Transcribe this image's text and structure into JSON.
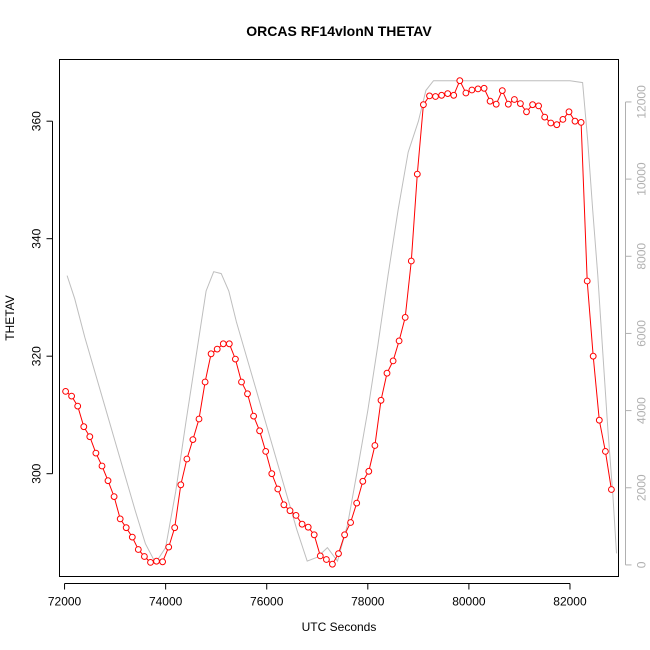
{
  "chart_data": {
    "type": "line",
    "title": "ORCAS RF14vlonN THETAV",
    "xlabel": "UTC Seconds",
    "ylabel": "THETAV",
    "ylabel_right": "",
    "xlim": [
      71900,
      82960
    ],
    "ylim": [
      282.5,
      370.5
    ],
    "ylim_right": [
      -300,
      13100
    ],
    "x_ticks": [
      72000,
      74000,
      76000,
      78000,
      80000,
      82000
    ],
    "y_ticks": [
      300,
      320,
      340,
      360
    ],
    "y_ticks_right": [
      0,
      2000,
      4000,
      6000,
      8000,
      10000,
      12000
    ],
    "grid": false,
    "colors": {
      "primary": "#ff0000",
      "secondary": "#bebebe",
      "axis": "#000000",
      "right_axis": "#b0b0b0"
    },
    "series": [
      {
        "axis": "left",
        "marker": "circle",
        "x": [
          72020,
          72140,
          72260,
          72380,
          72500,
          72620,
          72740,
          72860,
          72980,
          73100,
          73220,
          73340,
          73460,
          73580,
          73700,
          73820,
          73940,
          74060,
          74180,
          74300,
          74420,
          74540,
          74660,
          74780,
          74900,
          75020,
          75140,
          75260,
          75380,
          75500,
          75620,
          75740,
          75860,
          75980,
          76100,
          76220,
          76340,
          76460,
          76580,
          76700,
          76820,
          76940,
          77060,
          77180,
          77300,
          77420,
          77540,
          77660,
          77780,
          77900,
          78020,
          78140,
          78260,
          78380,
          78500,
          78620,
          78740,
          78860,
          78980,
          79100,
          79220,
          79340,
          79460,
          79580,
          79700,
          79820,
          79940,
          80060,
          80180,
          80300,
          80420,
          80540,
          80660,
          80780,
          80900,
          81020,
          81140,
          81260,
          81380,
          81500,
          81620,
          81740,
          81860,
          81980,
          82100,
          82220,
          82340,
          82460,
          82580,
          82700,
          82820
        ],
        "y": [
          314.0,
          313.2,
          311.5,
          308.0,
          306.3,
          303.5,
          301.3,
          298.8,
          296.1,
          292.3,
          290.8,
          289.2,
          287.1,
          285.9,
          284.9,
          285.1,
          285.0,
          287.5,
          290.8,
          298.1,
          302.5,
          305.8,
          309.3,
          315.6,
          320.4,
          321.2,
          322.1,
          322.1,
          319.5,
          315.6,
          313.6,
          309.8,
          307.3,
          303.8,
          300.0,
          297.4,
          294.7,
          293.7,
          292.9,
          291.4,
          290.9,
          289.6,
          286.0,
          285.4,
          284.6,
          286.4,
          289.6,
          291.7,
          295.0,
          298.7,
          300.4,
          304.8,
          312.5,
          317.1,
          319.2,
          322.6,
          326.6,
          336.2,
          351.0,
          362.8,
          364.3,
          364.2,
          364.4,
          364.7,
          364.4,
          366.9,
          364.8,
          365.3,
          365.5,
          365.6,
          363.4,
          362.9,
          365.2,
          362.9,
          363.7,
          363.0,
          361.6,
          362.8,
          362.6,
          360.7,
          359.7,
          359.4,
          360.3,
          361.6,
          360.0,
          359.8,
          332.8,
          320.0,
          309.1,
          303.8,
          297.3
        ]
      },
      {
        "axis": "right",
        "marker": "none",
        "x": [
          72050,
          72200,
          72400,
          72600,
          72800,
          73000,
          73200,
          73400,
          73600,
          73800,
          74000,
          74200,
          74400,
          74600,
          74800,
          74950,
          75100,
          75250,
          75400,
          75600,
          75800,
          76000,
          76200,
          76400,
          76600,
          76800,
          77000,
          77200,
          77400,
          77600,
          77800,
          78000,
          78200,
          78400,
          78600,
          78800,
          79000,
          79150,
          79300,
          79500,
          80000,
          80500,
          81000,
          81500,
          82000,
          82250,
          82350,
          82450,
          82550,
          82650,
          82750,
          82850,
          82920
        ],
        "y": [
          7500,
          6900,
          5900,
          5000,
          4100,
          3200,
          2300,
          1400,
          550,
          50,
          450,
          1900,
          3700,
          5400,
          7100,
          7600,
          7550,
          7100,
          6300,
          5400,
          4500,
          3600,
          2700,
          1800,
          900,
          100,
          200,
          450,
          100,
          1050,
          2500,
          4000,
          5700,
          7500,
          9200,
          10700,
          11500,
          12300,
          12550,
          12550,
          12550,
          12550,
          12550,
          12550,
          12550,
          12500,
          11000,
          9200,
          7500,
          5500,
          3500,
          1800,
          300
        ]
      }
    ]
  }
}
